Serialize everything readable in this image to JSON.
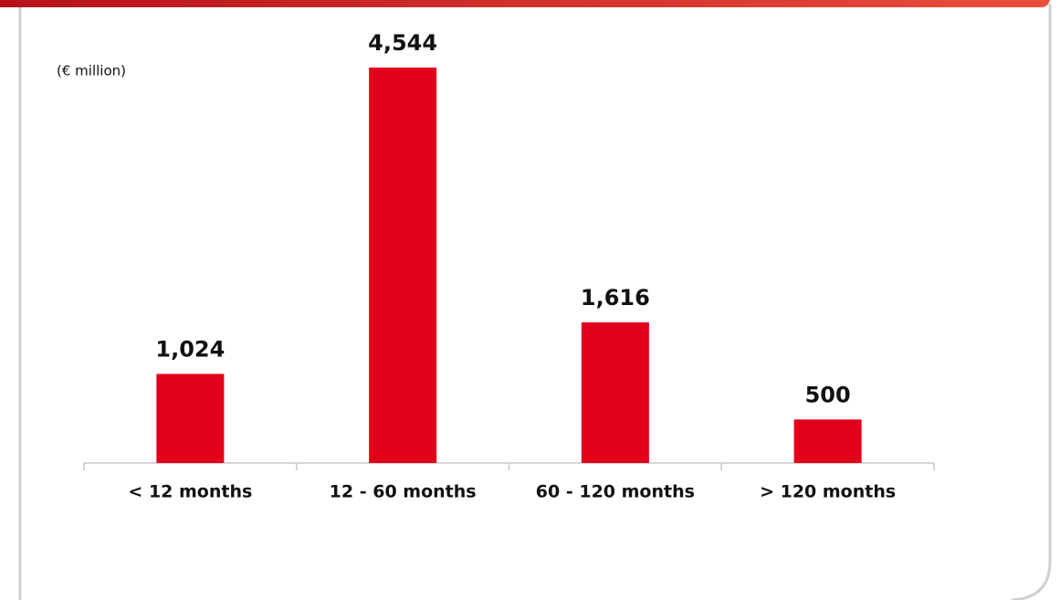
{
  "chart_data": {
    "type": "bar",
    "subtitle": "(€ million)",
    "categories": [
      "< 12 months",
      "12 - 60 months",
      "60 - 120 months",
      "> 120 months"
    ],
    "values": [
      1024,
      4544,
      1616,
      500
    ],
    "value_labels": [
      "1,024",
      "4,544",
      "1,616",
      "500"
    ],
    "color": "#e2001a"
  }
}
